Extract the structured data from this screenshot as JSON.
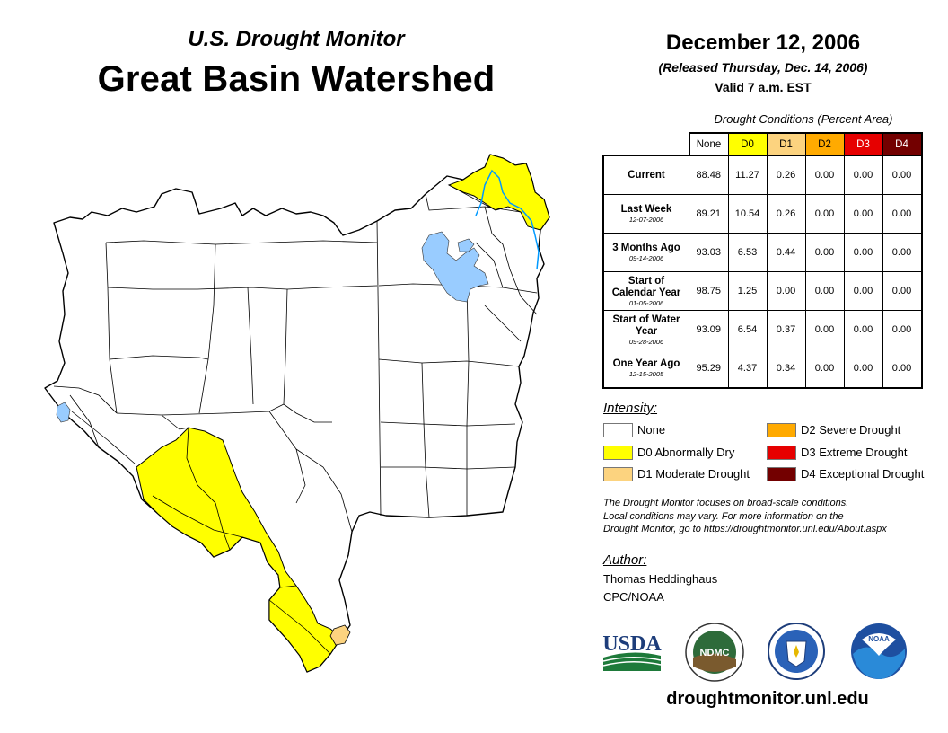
{
  "header": {
    "subtitle": "U.S. Drought Monitor",
    "title": "Great Basin Watershed",
    "date": "December 12, 2006",
    "released": "(Released Thursday, Dec. 14, 2006)",
    "valid": "Valid 7 a.m. EST"
  },
  "table": {
    "caption": "Drought Conditions (Percent Area)",
    "columns": [
      {
        "label": "None",
        "color": "#ffffff"
      },
      {
        "label": "D0",
        "color": "#ffff00"
      },
      {
        "label": "D1",
        "color": "#fcd37f"
      },
      {
        "label": "D2",
        "color": "#ffaa00"
      },
      {
        "label": "D3",
        "color": "#e60000"
      },
      {
        "label": "D4",
        "color": "#730000"
      }
    ],
    "rows": [
      {
        "label": "Current",
        "date": "",
        "values": [
          "88.48",
          "11.27",
          "0.26",
          "0.00",
          "0.00",
          "0.00"
        ]
      },
      {
        "label": "Last Week",
        "date": "12-07-2006",
        "values": [
          "89.21",
          "10.54",
          "0.26",
          "0.00",
          "0.00",
          "0.00"
        ]
      },
      {
        "label": "3 Months Ago",
        "date": "09-14-2006",
        "values": [
          "93.03",
          "6.53",
          "0.44",
          "0.00",
          "0.00",
          "0.00"
        ]
      },
      {
        "label": "Start of Calendar Year",
        "date": "01-05-2006",
        "values": [
          "98.75",
          "1.25",
          "0.00",
          "0.00",
          "0.00",
          "0.00"
        ]
      },
      {
        "label": "Start of Water Year",
        "date": "09-28-2006",
        "values": [
          "93.09",
          "6.54",
          "0.37",
          "0.00",
          "0.00",
          "0.00"
        ]
      },
      {
        "label": "One Year Ago",
        "date": "12-15-2005",
        "values": [
          "95.29",
          "4.37",
          "0.34",
          "0.00",
          "0.00",
          "0.00"
        ]
      }
    ]
  },
  "legend": {
    "title": "Intensity:",
    "items": [
      {
        "label": "None",
        "color": "#ffffff"
      },
      {
        "label": "D0 Abnormally Dry",
        "color": "#ffff00"
      },
      {
        "label": "D1 Moderate Drought",
        "color": "#fcd37f"
      },
      {
        "label": "D2 Severe Drought",
        "color": "#ffaa00"
      },
      {
        "label": "D3 Extreme Drought",
        "color": "#e60000"
      },
      {
        "label": "D4 Exceptional Drought",
        "color": "#730000"
      }
    ]
  },
  "note": {
    "line1": "The Drought Monitor focuses on broad-scale conditions.",
    "line2": "Local conditions may vary. For more information on the",
    "line3": "Drought Monitor, go to https://droughtmonitor.unl.edu/About.aspx"
  },
  "author": {
    "label": "Author:",
    "name": "Thomas Heddinghaus",
    "org": "CPC/NOAA"
  },
  "logos": {
    "usda": "USDA",
    "ndmc": "NDMC",
    "noaa": "NOAA"
  },
  "url": "droughtmonitor.unl.edu",
  "map_colors": {
    "water": "#99ccff",
    "river": "#0099ff",
    "d0": "#ffff00",
    "d1": "#fcd37f",
    "none": "#ffffff"
  }
}
